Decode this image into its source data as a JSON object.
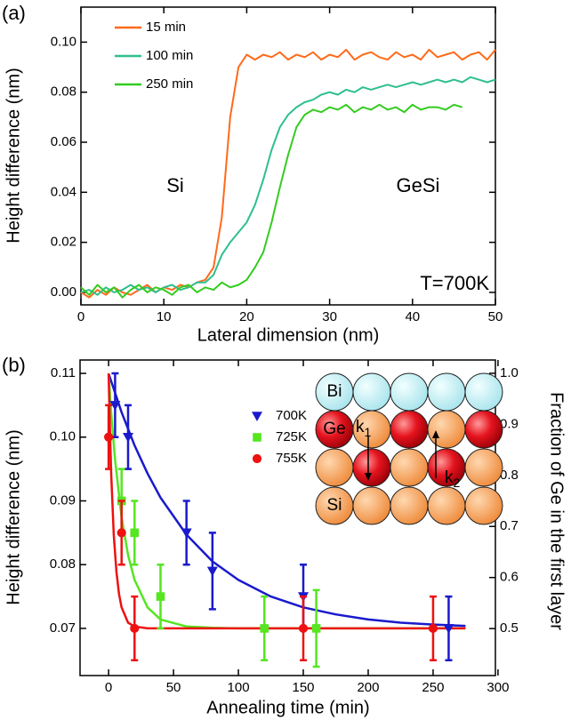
{
  "chart_data": [
    {
      "type": "line",
      "panel_label": "(a)",
      "xlabel": "Lateral dimension (nm)",
      "ylabel": "Height difference (nm)",
      "xlim": [
        0,
        50
      ],
      "ylim": [
        -0.005,
        0.114
      ],
      "xticks": [
        0,
        10,
        20,
        30,
        40,
        50
      ],
      "yticks": [
        {
          "value": 0,
          "label": "0.00"
        },
        {
          "value": 0.02,
          "label": "0.02"
        },
        {
          "value": 0.04,
          "label": "0.04"
        },
        {
          "value": 0.06,
          "label": "0.06"
        },
        {
          "value": 0.08,
          "label": "0.08"
        },
        {
          "value": 0.1,
          "label": "0.10"
        }
      ],
      "legend": "upper-left",
      "annotations": [
        "Si",
        "GeSi",
        "T=700K"
      ],
      "x": [
        0,
        1,
        2,
        3,
        4,
        5,
        6,
        7,
        8,
        9,
        10,
        11,
        12,
        13,
        14,
        15,
        16,
        17,
        18,
        19,
        20,
        21,
        22,
        23,
        24,
        25,
        26,
        27,
        28,
        29,
        30,
        31,
        32,
        33,
        34,
        35,
        36,
        37,
        38,
        39,
        40,
        41,
        42,
        43,
        44,
        45,
        46,
        47,
        48,
        49,
        50
      ],
      "series": [
        {
          "name": "15 min",
          "color": "#ff6a1a",
          "values": [
            0.0,
            -0.002,
            0.001,
            -0.001,
            0.002,
            0.0,
            -0.001,
            0.001,
            0.003,
            0.0,
            0.002,
            0.001,
            0.003,
            0.002,
            0.004,
            0.005,
            0.01,
            0.03,
            0.07,
            0.09,
            0.095,
            0.093,
            0.095,
            0.094,
            0.096,
            0.093,
            0.095,
            0.094,
            0.096,
            0.093,
            0.095,
            0.094,
            0.097,
            0.093,
            0.095,
            0.096,
            0.094,
            0.093,
            0.096,
            0.094,
            0.095,
            0.093,
            0.097,
            0.094,
            0.095,
            0.096,
            0.093,
            0.095,
            0.096,
            0.093,
            0.097
          ]
        },
        {
          "name": "100 min",
          "color": "#2ebf8f",
          "values": [
            0.0,
            0.001,
            -0.001,
            0.002,
            0.0,
            0.001,
            0.003,
            0.001,
            0.002,
            0.0,
            0.002,
            0.003,
            0.001,
            0.002,
            0.004,
            0.004,
            0.007,
            0.015,
            0.02,
            0.024,
            0.028,
            0.035,
            0.045,
            0.057,
            0.066,
            0.071,
            0.074,
            0.076,
            0.077,
            0.079,
            0.08,
            0.079,
            0.081,
            0.08,
            0.082,
            0.081,
            0.082,
            0.083,
            0.082,
            0.083,
            0.084,
            0.083,
            0.084,
            0.085,
            0.084,
            0.085,
            0.084,
            0.086,
            0.085,
            0.084,
            0.085
          ]
        },
        {
          "name": "250 min",
          "color": "#33cc1f",
          "values": [
            0.002,
            -0.001,
            0.003,
            0.0,
            0.002,
            -0.002,
            0.001,
            0.003,
            0.0,
            0.002,
            0.001,
            -0.001,
            0.002,
            0.003,
            0.0,
            0.002,
            0.001,
            0.004,
            0.002,
            0.003,
            0.005,
            0.01,
            0.016,
            0.028,
            0.042,
            0.055,
            0.066,
            0.071,
            0.073,
            0.072,
            0.074,
            0.073,
            0.075,
            0.072,
            0.074,
            0.073,
            0.075,
            0.073,
            0.074,
            0.072,
            0.075,
            0.073,
            0.074,
            0.074,
            0.073,
            0.075,
            0.074,
            null,
            null,
            null,
            null
          ]
        }
      ]
    },
    {
      "type": "scatter",
      "panel_label": "(b)",
      "xlabel": "Annealing time (min)",
      "ylabel": "Height difference (nm)",
      "y2label": "Fraction of Ge in the first layer",
      "xlim": [
        -22,
        298
      ],
      "ylim": [
        0.0626,
        0.1121
      ],
      "y2lim": [
        0.408,
        1.026
      ],
      "xticks": [
        0,
        50,
        100,
        150,
        200,
        250,
        300
      ],
      "yticks": [
        0.07,
        0.08,
        0.09,
        {
          "value": 0.1,
          "label": "0.10"
        },
        0.11
      ],
      "y2ticks": [
        0.5,
        0.6,
        0.7,
        0.8,
        0.9,
        {
          "value": 1,
          "label": "1.0"
        }
      ],
      "legend": "upper-center",
      "series": [
        {
          "name": "700K",
          "color": "#1a1acc",
          "marker": "triangle-down",
          "x": [
            5,
            15,
            60,
            80,
            150,
            262
          ],
          "values": [
            0.105,
            0.1,
            0.085,
            0.079,
            0.075,
            0.07
          ],
          "errors": [
            0.005,
            0.005,
            0.005,
            0.006,
            0.005,
            0.005
          ]
        },
        {
          "name": "725K",
          "color": "#55e620",
          "marker": "square",
          "x": [
            10,
            20,
            40,
            120,
            160
          ],
          "values": [
            0.09,
            0.085,
            0.075,
            0.07,
            0.07
          ],
          "errors": [
            0.005,
            0.005,
            0.005,
            0.005,
            0.006
          ]
        },
        {
          "name": "755K",
          "color": "#ee1111",
          "marker": "circle",
          "x": [
            0,
            10,
            20,
            150,
            250
          ],
          "values": [
            0.1,
            0.085,
            0.07,
            0.07,
            0.07
          ],
          "errors": [
            0.005,
            0.005,
            0.005,
            0.005,
            0.005
          ]
        }
      ],
      "fits": [
        {
          "color": "#1a1acc",
          "x": [
            0,
            10,
            20,
            30,
            40,
            60,
            80,
            100,
            125,
            150,
            175,
            200,
            225,
            250,
            275
          ],
          "values": [
            0.11,
            0.1039,
            0.0987,
            0.0943,
            0.0905,
            0.0847,
            0.0805,
            0.0776,
            0.075,
            0.0733,
            0.0722,
            0.0714,
            0.0709,
            0.0706,
            0.0704
          ]
        },
        {
          "color": "#55e620",
          "x": [
            0,
            2,
            5,
            10,
            15,
            20,
            30,
            40,
            60,
            80,
            100,
            150,
            200,
            275
          ],
          "values": [
            0.11,
            0.1038,
            0.0964,
            0.0874,
            0.0815,
            0.0776,
            0.0733,
            0.0714,
            0.0703,
            0.0701,
            0.07,
            0.07,
            0.07,
            0.07
          ]
        },
        {
          "color": "#ee1111",
          "x": [
            0,
            1,
            2,
            4,
            6,
            8,
            10,
            15,
            20,
            30,
            50,
            100,
            200,
            275
          ],
          "values": [
            0.11,
            0.1012,
            0.0943,
            0.0847,
            0.0789,
            0.0754,
            0.0733,
            0.0709,
            0.0703,
            0.07,
            0.07,
            0.07,
            0.07,
            0.07
          ]
        }
      ],
      "inset": {
        "labels": [
          "Bi",
          "Ge",
          "Si"
        ],
        "rate_symbol": "k",
        "rate_indices": [
          "1",
          "2"
        ]
      }
    }
  ]
}
